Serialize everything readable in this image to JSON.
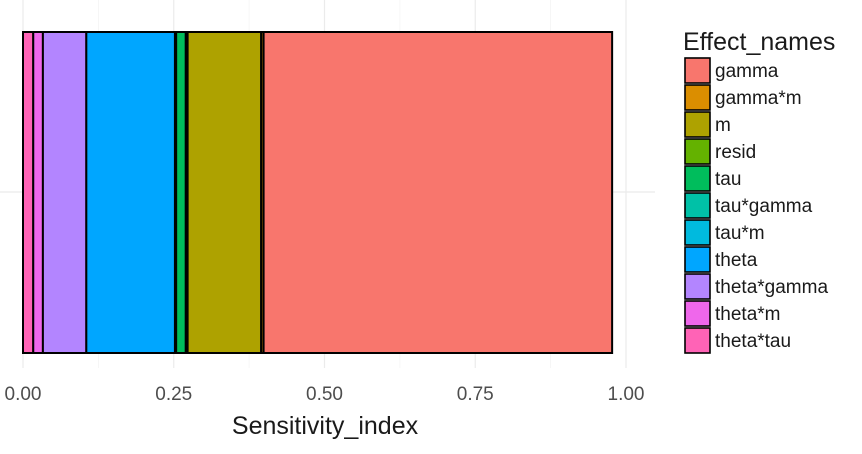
{
  "chart_data": {
    "type": "bar",
    "orientation": "horizontal",
    "stacked": true,
    "xlabel": "Sensitivity_index",
    "ylabel": "",
    "xlim": [
      0,
      1
    ],
    "x_ticks": [
      "0.00",
      "0.25",
      "0.50",
      "0.75",
      "1.00"
    ],
    "grid": true,
    "legend_title": "Effect_names",
    "legend_position": "right",
    "stack_order": [
      "theta*tau",
      "theta*m",
      "theta*gamma",
      "theta",
      "tau*m",
      "tau*gamma",
      "tau",
      "resid",
      "m",
      "gamma*m",
      "gamma"
    ],
    "series": [
      {
        "name": "gamma",
        "value": 0.578,
        "color": "#F8766D"
      },
      {
        "name": "gamma*m",
        "value": 0.004,
        "color": "#DB8E00"
      },
      {
        "name": "m",
        "value": 0.122,
        "color": "#AEA200"
      },
      {
        "name": "resid",
        "value": 0.003,
        "color": "#64B200"
      },
      {
        "name": "tau",
        "value": 0.016,
        "color": "#00BD5C"
      },
      {
        "name": "tau*gamma",
        "value": 0.001,
        "color": "#00C1A7"
      },
      {
        "name": "tau*m",
        "value": 0.001,
        "color": "#00BADE"
      },
      {
        "name": "theta",
        "value": 0.147,
        "color": "#00A6FF"
      },
      {
        "name": "theta*gamma",
        "value": 0.072,
        "color": "#B385FF"
      },
      {
        "name": "theta*m",
        "value": 0.016,
        "color": "#EF67EB"
      },
      {
        "name": "theta*tau",
        "value": 0.017,
        "color": "#FF63B6"
      }
    ]
  }
}
